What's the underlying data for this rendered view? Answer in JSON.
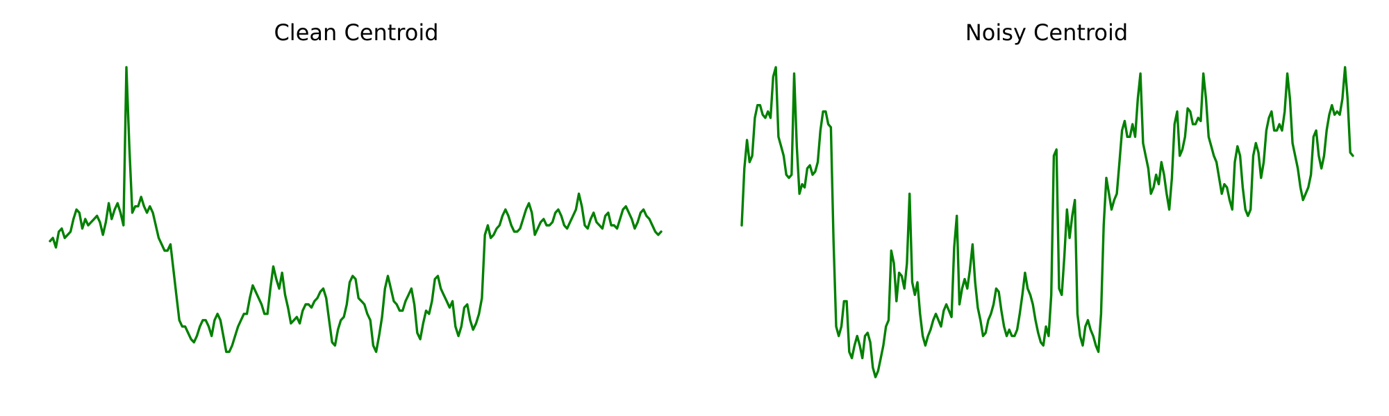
{
  "figure": {
    "background": "#ffffff",
    "axes_visible": false,
    "grid": false,
    "legend": false
  },
  "chart_data": [
    {
      "type": "line",
      "title": "Clean Centroid",
      "xlabel": "",
      "ylabel": "",
      "color": "#008000",
      "xlim": [
        0,
        200
      ],
      "ylim": [
        0,
        1
      ],
      "y": [
        0.45,
        0.46,
        0.43,
        0.48,
        0.49,
        0.46,
        0.47,
        0.48,
        0.52,
        0.55,
        0.54,
        0.49,
        0.52,
        0.5,
        0.51,
        0.52,
        0.53,
        0.51,
        0.47,
        0.51,
        0.57,
        0.52,
        0.55,
        0.57,
        0.54,
        0.5,
        1.0,
        0.75,
        0.54,
        0.56,
        0.56,
        0.59,
        0.56,
        0.54,
        0.56,
        0.54,
        0.5,
        0.46,
        0.44,
        0.42,
        0.42,
        0.44,
        0.36,
        0.28,
        0.2,
        0.18,
        0.18,
        0.16,
        0.14,
        0.13,
        0.15,
        0.18,
        0.2,
        0.2,
        0.18,
        0.15,
        0.2,
        0.22,
        0.2,
        0.15,
        0.1,
        0.1,
        0.12,
        0.15,
        0.18,
        0.2,
        0.22,
        0.22,
        0.27,
        0.31,
        0.29,
        0.27,
        0.25,
        0.22,
        0.22,
        0.3,
        0.37,
        0.33,
        0.3,
        0.35,
        0.28,
        0.24,
        0.19,
        0.2,
        0.21,
        0.19,
        0.23,
        0.25,
        0.25,
        0.24,
        0.26,
        0.27,
        0.29,
        0.3,
        0.27,
        0.2,
        0.13,
        0.12,
        0.17,
        0.2,
        0.21,
        0.25,
        0.32,
        0.34,
        0.33,
        0.27,
        0.26,
        0.25,
        0.22,
        0.2,
        0.12,
        0.1,
        0.15,
        0.21,
        0.3,
        0.34,
        0.3,
        0.26,
        0.25,
        0.23,
        0.23,
        0.26,
        0.28,
        0.3,
        0.25,
        0.16,
        0.14,
        0.19,
        0.23,
        0.22,
        0.26,
        0.33,
        0.34,
        0.3,
        0.28,
        0.26,
        0.24,
        0.26,
        0.18,
        0.15,
        0.18,
        0.24,
        0.25,
        0.2,
        0.17,
        0.19,
        0.22,
        0.27,
        0.47,
        0.5,
        0.46,
        0.47,
        0.49,
        0.5,
        0.53,
        0.55,
        0.53,
        0.5,
        0.48,
        0.48,
        0.49,
        0.52,
        0.55,
        0.57,
        0.54,
        0.47,
        0.49,
        0.51,
        0.52,
        0.5,
        0.5,
        0.51,
        0.54,
        0.55,
        0.53,
        0.5,
        0.49,
        0.51,
        0.53,
        0.55,
        0.6,
        0.56,
        0.5,
        0.49,
        0.52,
        0.54,
        0.51,
        0.5,
        0.49,
        0.53,
        0.54,
        0.5,
        0.5,
        0.49,
        0.52,
        0.55,
        0.56,
        0.54,
        0.52,
        0.49,
        0.51,
        0.54,
        0.55,
        0.53,
        0.52,
        0.5,
        0.48,
        0.47,
        0.48
      ]
    },
    {
      "type": "line",
      "title": "Noisy Centroid",
      "xlabel": "",
      "ylabel": "",
      "color": "#008000",
      "xlim": [
        0,
        200
      ],
      "ylim": [
        0,
        1
      ],
      "y": [
        0.5,
        0.68,
        0.77,
        0.7,
        0.72,
        0.84,
        0.88,
        0.88,
        0.85,
        0.84,
        0.86,
        0.84,
        0.97,
        1.0,
        0.78,
        0.75,
        0.72,
        0.66,
        0.65,
        0.66,
        0.98,
        0.75,
        0.6,
        0.63,
        0.62,
        0.68,
        0.69,
        0.66,
        0.67,
        0.7,
        0.8,
        0.86,
        0.86,
        0.82,
        0.81,
        0.45,
        0.18,
        0.15,
        0.18,
        0.26,
        0.26,
        0.1,
        0.08,
        0.12,
        0.15,
        0.12,
        0.08,
        0.15,
        0.16,
        0.13,
        0.05,
        0.02,
        0.04,
        0.08,
        0.12,
        0.18,
        0.2,
        0.42,
        0.38,
        0.26,
        0.35,
        0.34,
        0.3,
        0.38,
        0.6,
        0.32,
        0.28,
        0.32,
        0.22,
        0.15,
        0.12,
        0.15,
        0.17,
        0.2,
        0.22,
        0.2,
        0.18,
        0.23,
        0.25,
        0.23,
        0.21,
        0.43,
        0.53,
        0.25,
        0.3,
        0.33,
        0.3,
        0.36,
        0.44,
        0.32,
        0.24,
        0.2,
        0.15,
        0.16,
        0.2,
        0.22,
        0.25,
        0.3,
        0.29,
        0.23,
        0.18,
        0.15,
        0.17,
        0.15,
        0.15,
        0.17,
        0.22,
        0.28,
        0.35,
        0.3,
        0.28,
        0.25,
        0.2,
        0.16,
        0.13,
        0.12,
        0.18,
        0.15,
        0.28,
        0.72,
        0.74,
        0.3,
        0.28,
        0.4,
        0.55,
        0.46,
        0.53,
        0.58,
        0.22,
        0.15,
        0.12,
        0.18,
        0.2,
        0.17,
        0.15,
        0.12,
        0.1,
        0.22,
        0.5,
        0.65,
        0.6,
        0.55,
        0.58,
        0.6,
        0.7,
        0.8,
        0.83,
        0.78,
        0.78,
        0.82,
        0.78,
        0.9,
        0.98,
        0.76,
        0.72,
        0.68,
        0.6,
        0.62,
        0.66,
        0.63,
        0.7,
        0.66,
        0.6,
        0.55,
        0.65,
        0.82,
        0.86,
        0.72,
        0.74,
        0.78,
        0.87,
        0.86,
        0.82,
        0.82,
        0.84,
        0.83,
        0.98,
        0.9,
        0.78,
        0.75,
        0.72,
        0.7,
        0.65,
        0.6,
        0.63,
        0.62,
        0.58,
        0.55,
        0.7,
        0.75,
        0.72,
        0.62,
        0.55,
        0.53,
        0.55,
        0.72,
        0.76,
        0.73,
        0.65,
        0.7,
        0.8,
        0.84,
        0.86,
        0.8,
        0.8,
        0.82,
        0.8,
        0.86,
        0.98,
        0.9,
        0.76,
        0.72,
        0.68,
        0.62,
        0.58,
        0.6,
        0.62,
        0.66,
        0.78,
        0.8,
        0.72,
        0.68,
        0.72,
        0.8,
        0.85,
        0.88,
        0.85,
        0.86,
        0.85,
        0.9,
        1.0,
        0.9,
        0.73,
        0.72
      ]
    }
  ]
}
